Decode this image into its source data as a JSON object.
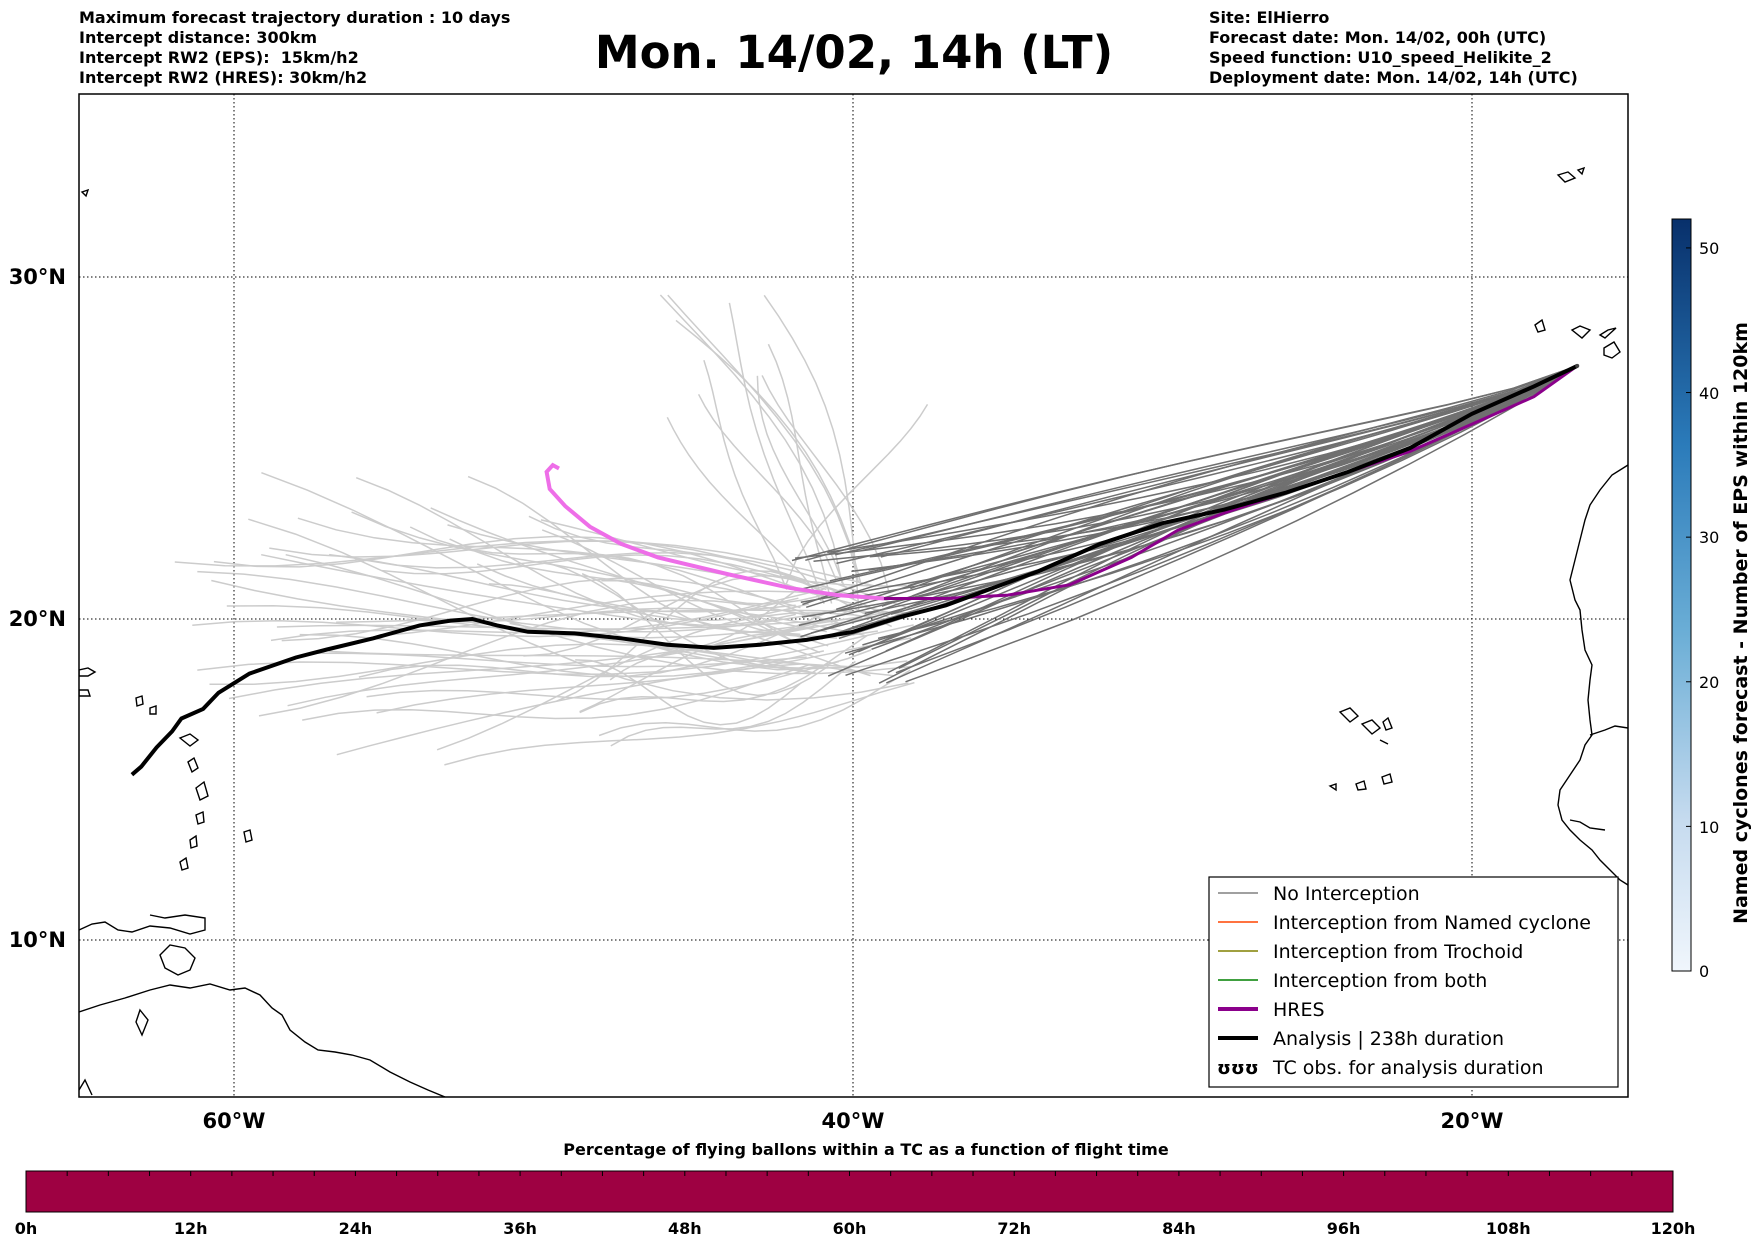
{
  "header_left": [
    "Maximum forecast trajectory duration : 10 days",
    "Intercept distance: 300km",
    "Intercept RW2 (EPS):  15km/h2",
    "Intercept RW2 (HRES): 30km/h2"
  ],
  "header_right": [
    "Site: ElHierro",
    "Forecast date: Mon. 14/02, 00h (UTC)",
    "Speed function: U10_speed_Helikite_2",
    "Deployment date: Mon. 14/02, 14h (UTC)"
  ],
  "title": "Mon. 14/02, 14h (LT)",
  "map": {
    "lat_labels": [
      "30°N",
      "20°N",
      "10°N"
    ],
    "lon_labels": [
      "60°W",
      "40°W",
      "20°W"
    ],
    "lon_range": [
      -65,
      -15
    ],
    "lat_range": [
      5,
      34.4
    ],
    "gridlines": true,
    "coastlines": true
  },
  "colorbar_right": {
    "label": "Named cyclones forecast - Number of EPS within 120km",
    "ticks": [
      "0",
      "10",
      "20",
      "30",
      "40",
      "50"
    ],
    "range": [
      0,
      52
    ],
    "colormap": "Blues"
  },
  "colorbar_bottom": {
    "title": "Percentage of flying ballons within a TC as a function of flight time",
    "ticks": [
      "0h",
      "12h",
      "24h",
      "36h",
      "48h",
      "60h",
      "72h",
      "84h",
      "96h",
      "108h",
      "120h"
    ],
    "fill_color": "#9e0142"
  },
  "legend": {
    "placement": "lower-right",
    "items": [
      {
        "label": "No Interception",
        "color": "#808080"
      },
      {
        "label": "Interception from Named cyclone",
        "color": "#ff4500"
      },
      {
        "label": "Interception from Trochoid",
        "color": "#808000"
      },
      {
        "label": "Interception from both",
        "color": "#008000"
      },
      {
        "label": "HRES",
        "color": "#8b008b"
      },
      {
        "label": "Analysis | 238h duration",
        "color": "#000000"
      },
      {
        "label": "TC obs. for analysis duration",
        "symbol": "ʊʊʊ"
      }
    ]
  },
  "tracks": {
    "site": {
      "lon": -16.6,
      "lat": 27.4
    },
    "analysis_color": "#000000",
    "hres_color": "#8b008b",
    "hres_end_color": "#ee6ee8",
    "eps_intercept_color": "#707070",
    "eps_other_color": "#cccccc",
    "analysis": [
      [
        -16.6,
        27.4
      ],
      [
        -18,
        26.8
      ],
      [
        -20,
        26
      ],
      [
        -22,
        25
      ],
      [
        -24,
        24.3
      ],
      [
        -26,
        23.7
      ],
      [
        -28,
        23.2
      ],
      [
        -30,
        22.8
      ],
      [
        -32,
        22.2
      ],
      [
        -34,
        21.4
      ],
      [
        -35.5,
        20.9
      ],
      [
        -37,
        20.4
      ],
      [
        -38.5,
        20.05
      ],
      [
        -40,
        19.6
      ],
      [
        -41.5,
        19.35
      ],
      [
        -43,
        19.2
      ],
      [
        -44.5,
        19.1
      ],
      [
        -46,
        19.2
      ],
      [
        -47.5,
        19.4
      ],
      [
        -49,
        19.55
      ],
      [
        -50.5,
        19.6
      ],
      [
        -51.5,
        19.8
      ],
      [
        -52.3,
        20.0
      ],
      [
        -53,
        19.95
      ],
      [
        -54,
        19.8
      ],
      [
        -55.5,
        19.4
      ],
      [
        -57,
        19.05
      ],
      [
        -58,
        18.8
      ],
      [
        -59.5,
        18.3
      ],
      [
        -60.5,
        17.7
      ],
      [
        -61,
        17.2
      ],
      [
        -61.7,
        16.9
      ],
      [
        -62,
        16.5
      ],
      [
        -62.5,
        16.0
      ],
      [
        -63,
        15.4
      ],
      [
        -63.3,
        15.15
      ]
    ],
    "hres": [
      [
        -16.6,
        27.4
      ],
      [
        -18,
        26.5
      ],
      [
        -20,
        25.7
      ],
      [
        -22,
        24.9
      ],
      [
        -24,
        24.3
      ],
      [
        -26,
        23.7
      ],
      [
        -28,
        23.1
      ],
      [
        -29.5,
        22.6
      ],
      [
        -31,
        21.8
      ],
      [
        -33,
        21.0
      ],
      [
        -35,
        20.7
      ],
      [
        -37,
        20.6
      ],
      [
        -39,
        20.6
      ]
    ],
    "hres_end": [
      [
        -39,
        20.6
      ],
      [
        -40.5,
        20.7
      ],
      [
        -42,
        20.9
      ],
      [
        -44,
        21.3
      ],
      [
        -46.3,
        21.8
      ],
      [
        -47.5,
        22.2
      ],
      [
        -48.5,
        22.7
      ],
      [
        -49.3,
        23.3
      ],
      [
        -49.8,
        23.8
      ],
      [
        -49.9,
        24.3
      ],
      [
        -49.7,
        24.5
      ],
      [
        -49.5,
        24.4
      ]
    ]
  }
}
